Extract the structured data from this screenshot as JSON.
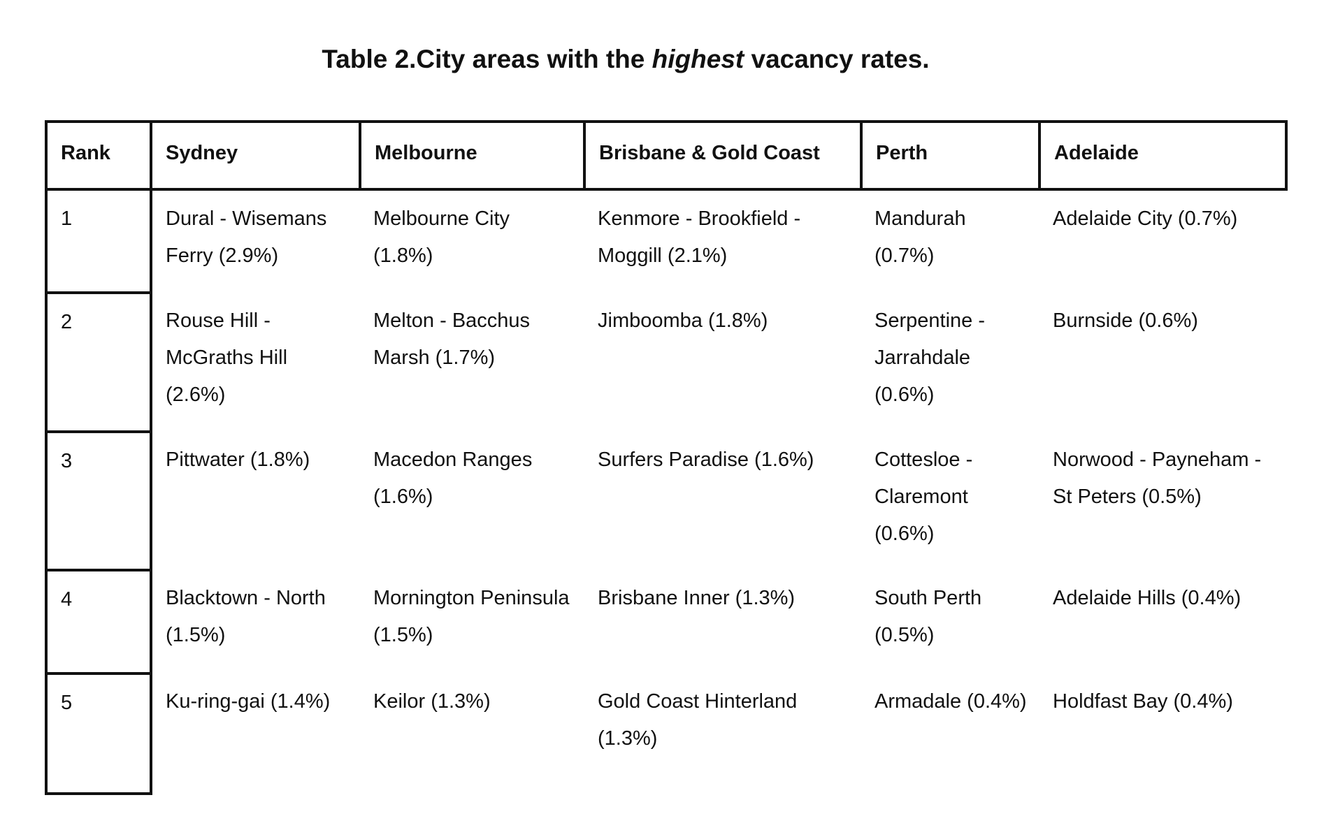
{
  "title": {
    "before": "Table 2.City areas with the ",
    "emphasis": "highest",
    "after": " vacancy rates."
  },
  "headers": [
    "Rank",
    "Sydney",
    "Melbourne",
    "Brisbane & Gold Coast",
    "Perth",
    "Adelaide"
  ],
  "rows": [
    [
      "1",
      "Dural - Wisemans Ferry (2.9%)",
      "Melbourne City (1.8%)",
      "Kenmore - Brookfield - Moggill (2.1%)",
      "Mandurah (0.7%)",
      "Adelaide City (0.7%)"
    ],
    [
      "2",
      "Rouse Hill - McGraths Hill (2.6%)",
      "Melton - Bacchus Marsh (1.7%)",
      "Jimboomba (1.8%)",
      "Serpentine - Jarrahdale (0.6%)",
      "Burnside (0.6%)"
    ],
    [
      "3",
      "Pittwater (1.8%)",
      "Macedon Ranges (1.6%)",
      "Surfers Paradise (1.6%)",
      "Cottesloe - Claremont (0.6%)",
      "Norwood - Payneham - St Peters (0.5%)"
    ],
    [
      "4",
      "Blacktown - North (1.5%)",
      "Mornington Peninsula (1.5%)",
      "Brisbane Inner (1.3%)",
      "South Perth (0.5%)",
      "Adelaide Hills (0.4%)"
    ],
    [
      "5",
      "Ku-ring-gai (1.4%)",
      "Keilor (1.3%)",
      "Gold Coast Hinterland (1.3%)",
      "Armadale (0.4%)",
      "Holdfast Bay (0.4%)"
    ]
  ]
}
